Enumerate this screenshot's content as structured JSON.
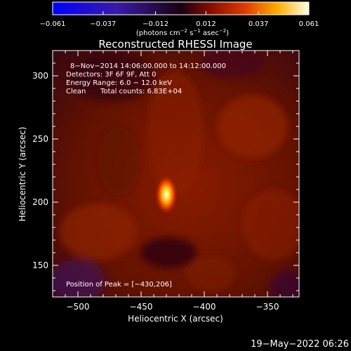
{
  "chart_data": {
    "type": "heatmap",
    "title": "Reconstructed RHESSI Image",
    "xlabel": "Heliocentric X (arcsec)",
    "ylabel": "Heliocentric Y (arcsec)",
    "xlim": [
      -520,
      -325
    ],
    "ylim": [
      125,
      320
    ],
    "xticks": [
      "−500",
      "−450",
      "−400",
      "−350"
    ],
    "xtick_values": [
      -500,
      -450,
      -400,
      -350
    ],
    "yticks": [
      "150",
      "200",
      "250",
      "300"
    ],
    "ytick_values": [
      150,
      200,
      250,
      300
    ],
    "colorbar": {
      "ticks": [
        "−0.061",
        "−0.037",
        "−0.012",
        "0.012",
        "0.037",
        "0.061"
      ],
      "tick_values": [
        -0.061,
        -0.037,
        -0.012,
        0.012,
        0.037,
        0.061
      ],
      "range": [
        -0.061,
        0.061
      ],
      "unit_base": "(photons cm",
      "unit_exp1": "−2",
      "unit_mid": " s",
      "unit_exp2": "−1",
      "unit_mid2": " asec",
      "unit_exp3": "−2",
      "unit_end": ")"
    },
    "annotations": {
      "time": "8−Nov−2014 14:06:00.000 to 14:12:00.000",
      "detectors": "Detectors: 3F 6F 9F, Att 0",
      "energy": "Energy Range: 6.0 − 12.0 keV",
      "method": "Clean",
      "counts": "Total counts: 6.83E+04",
      "peak": "Position of Peak = [−430,206]"
    },
    "peak": {
      "x": -430,
      "y": 206,
      "value": 0.061
    },
    "source_sigma": {
      "x": 4,
      "y": 7
    }
  },
  "footer": {
    "timestamp": "19−May−2022 06:26"
  }
}
